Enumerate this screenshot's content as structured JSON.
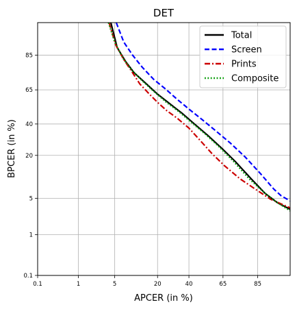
{
  "chart_data": {
    "type": "line",
    "title": "DET",
    "xlabel": "APCER (in %)",
    "ylabel": "BPCER (in %)",
    "x_scale": "probit",
    "y_scale": "probit",
    "xlim": [
      0.1,
      95
    ],
    "ylim": [
      0.1,
      95
    ],
    "x_ticks": [
      0.1,
      1,
      5,
      20,
      40,
      65,
      85
    ],
    "y_ticks": [
      0.1,
      1,
      5,
      20,
      40,
      65,
      85
    ],
    "grid": true,
    "legend_position": "top-right",
    "series": [
      {
        "name": "Total",
        "color": "#000000",
        "dash": "solid",
        "points": [
          [
            4.3,
            95
          ],
          [
            5.5,
            88
          ],
          [
            7.5,
            82
          ],
          [
            10,
            76
          ],
          [
            14,
            70
          ],
          [
            20,
            62
          ],
          [
            27,
            55
          ],
          [
            35,
            48
          ],
          [
            44,
            40
          ],
          [
            54,
            32
          ],
          [
            64,
            24
          ],
          [
            73,
            17
          ],
          [
            82,
            10
          ],
          [
            88,
            6
          ],
          [
            92,
            4.2
          ],
          [
            95,
            3.2
          ]
        ]
      },
      {
        "name": "Screen",
        "color": "#0000ff",
        "dash": "dashed",
        "points": [
          [
            5.3,
            95
          ],
          [
            7,
            90
          ],
          [
            9.5,
            85
          ],
          [
            13,
            79
          ],
          [
            18,
            72
          ],
          [
            24,
            66
          ],
          [
            32,
            58
          ],
          [
            40,
            51
          ],
          [
            50,
            43
          ],
          [
            60,
            35
          ],
          [
            70,
            27
          ],
          [
            79,
            19
          ],
          [
            86,
            12
          ],
          [
            91,
            7
          ],
          [
            93,
            5.5
          ],
          [
            95,
            4.5
          ]
        ]
      },
      {
        "name": "Prints",
        "color": "#cc0000",
        "dash": "dashdot",
        "points": [
          [
            4.0,
            95
          ],
          [
            5.2,
            89
          ],
          [
            7,
            83
          ],
          [
            9.5,
            76
          ],
          [
            12,
            69
          ],
          [
            16,
            62
          ],
          [
            20,
            56
          ],
          [
            25,
            50
          ],
          [
            32,
            44
          ],
          [
            40,
            37
          ],
          [
            48,
            29
          ],
          [
            57,
            21
          ],
          [
            66,
            15
          ],
          [
            76,
            10
          ],
          [
            84,
            7
          ],
          [
            90,
            4.8
          ],
          [
            95,
            3.4
          ]
        ]
      },
      {
        "name": "Composite",
        "color": "#009900",
        "dash": "dotted",
        "points": [
          [
            3.9,
            95
          ],
          [
            5,
            90
          ],
          [
            7,
            83
          ],
          [
            9.5,
            77
          ],
          [
            13,
            71
          ],
          [
            18,
            64
          ],
          [
            25,
            56
          ],
          [
            33,
            49
          ],
          [
            42,
            41
          ],
          [
            52,
            33
          ],
          [
            62,
            25
          ],
          [
            72,
            17
          ],
          [
            81,
            10
          ],
          [
            88,
            6
          ],
          [
            92,
            4.2
          ],
          [
            95,
            3.0
          ]
        ]
      }
    ]
  }
}
